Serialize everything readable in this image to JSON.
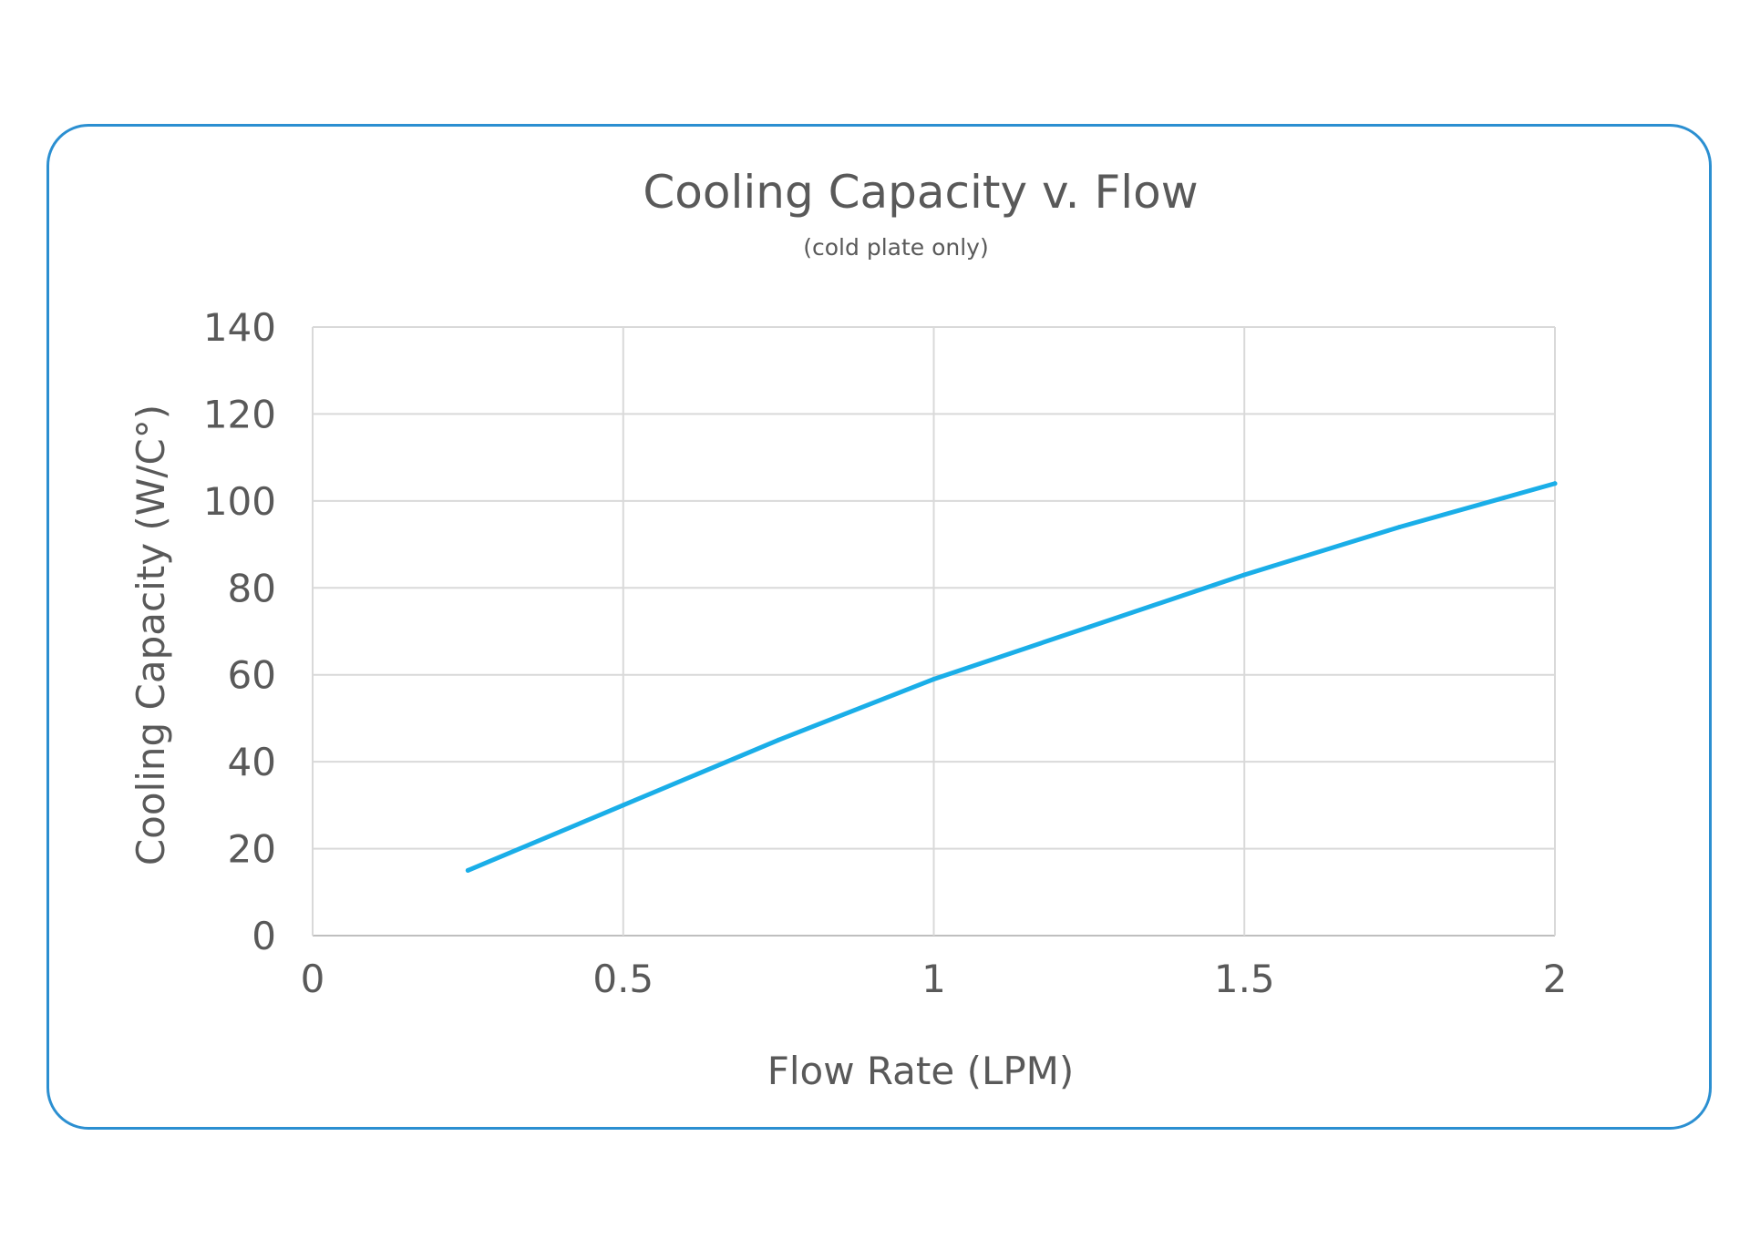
{
  "chart_data": {
    "type": "line",
    "title": "Cooling Capacity v. Flow",
    "subtitle": "(cold plate only)",
    "xlabel": "Flow Rate (LPM)",
    "ylabel": "Cooling Capacity (W/C°)",
    "xlim": [
      0,
      2
    ],
    "ylim": [
      0,
      140
    ],
    "x_ticks": [
      "0",
      "0.5",
      "1",
      "1.5",
      "2"
    ],
    "y_ticks": [
      "0",
      "20",
      "40",
      "60",
      "80",
      "100",
      "120",
      "140"
    ],
    "grid": true,
    "legend": "none",
    "series": [
      {
        "color": "#1aaee8",
        "x": [
          0.25,
          0.5,
          0.75,
          1.0,
          1.25,
          1.5,
          1.75,
          2.0
        ],
        "y": [
          15,
          30,
          45,
          59,
          71,
          83,
          94,
          104
        ]
      }
    ]
  }
}
